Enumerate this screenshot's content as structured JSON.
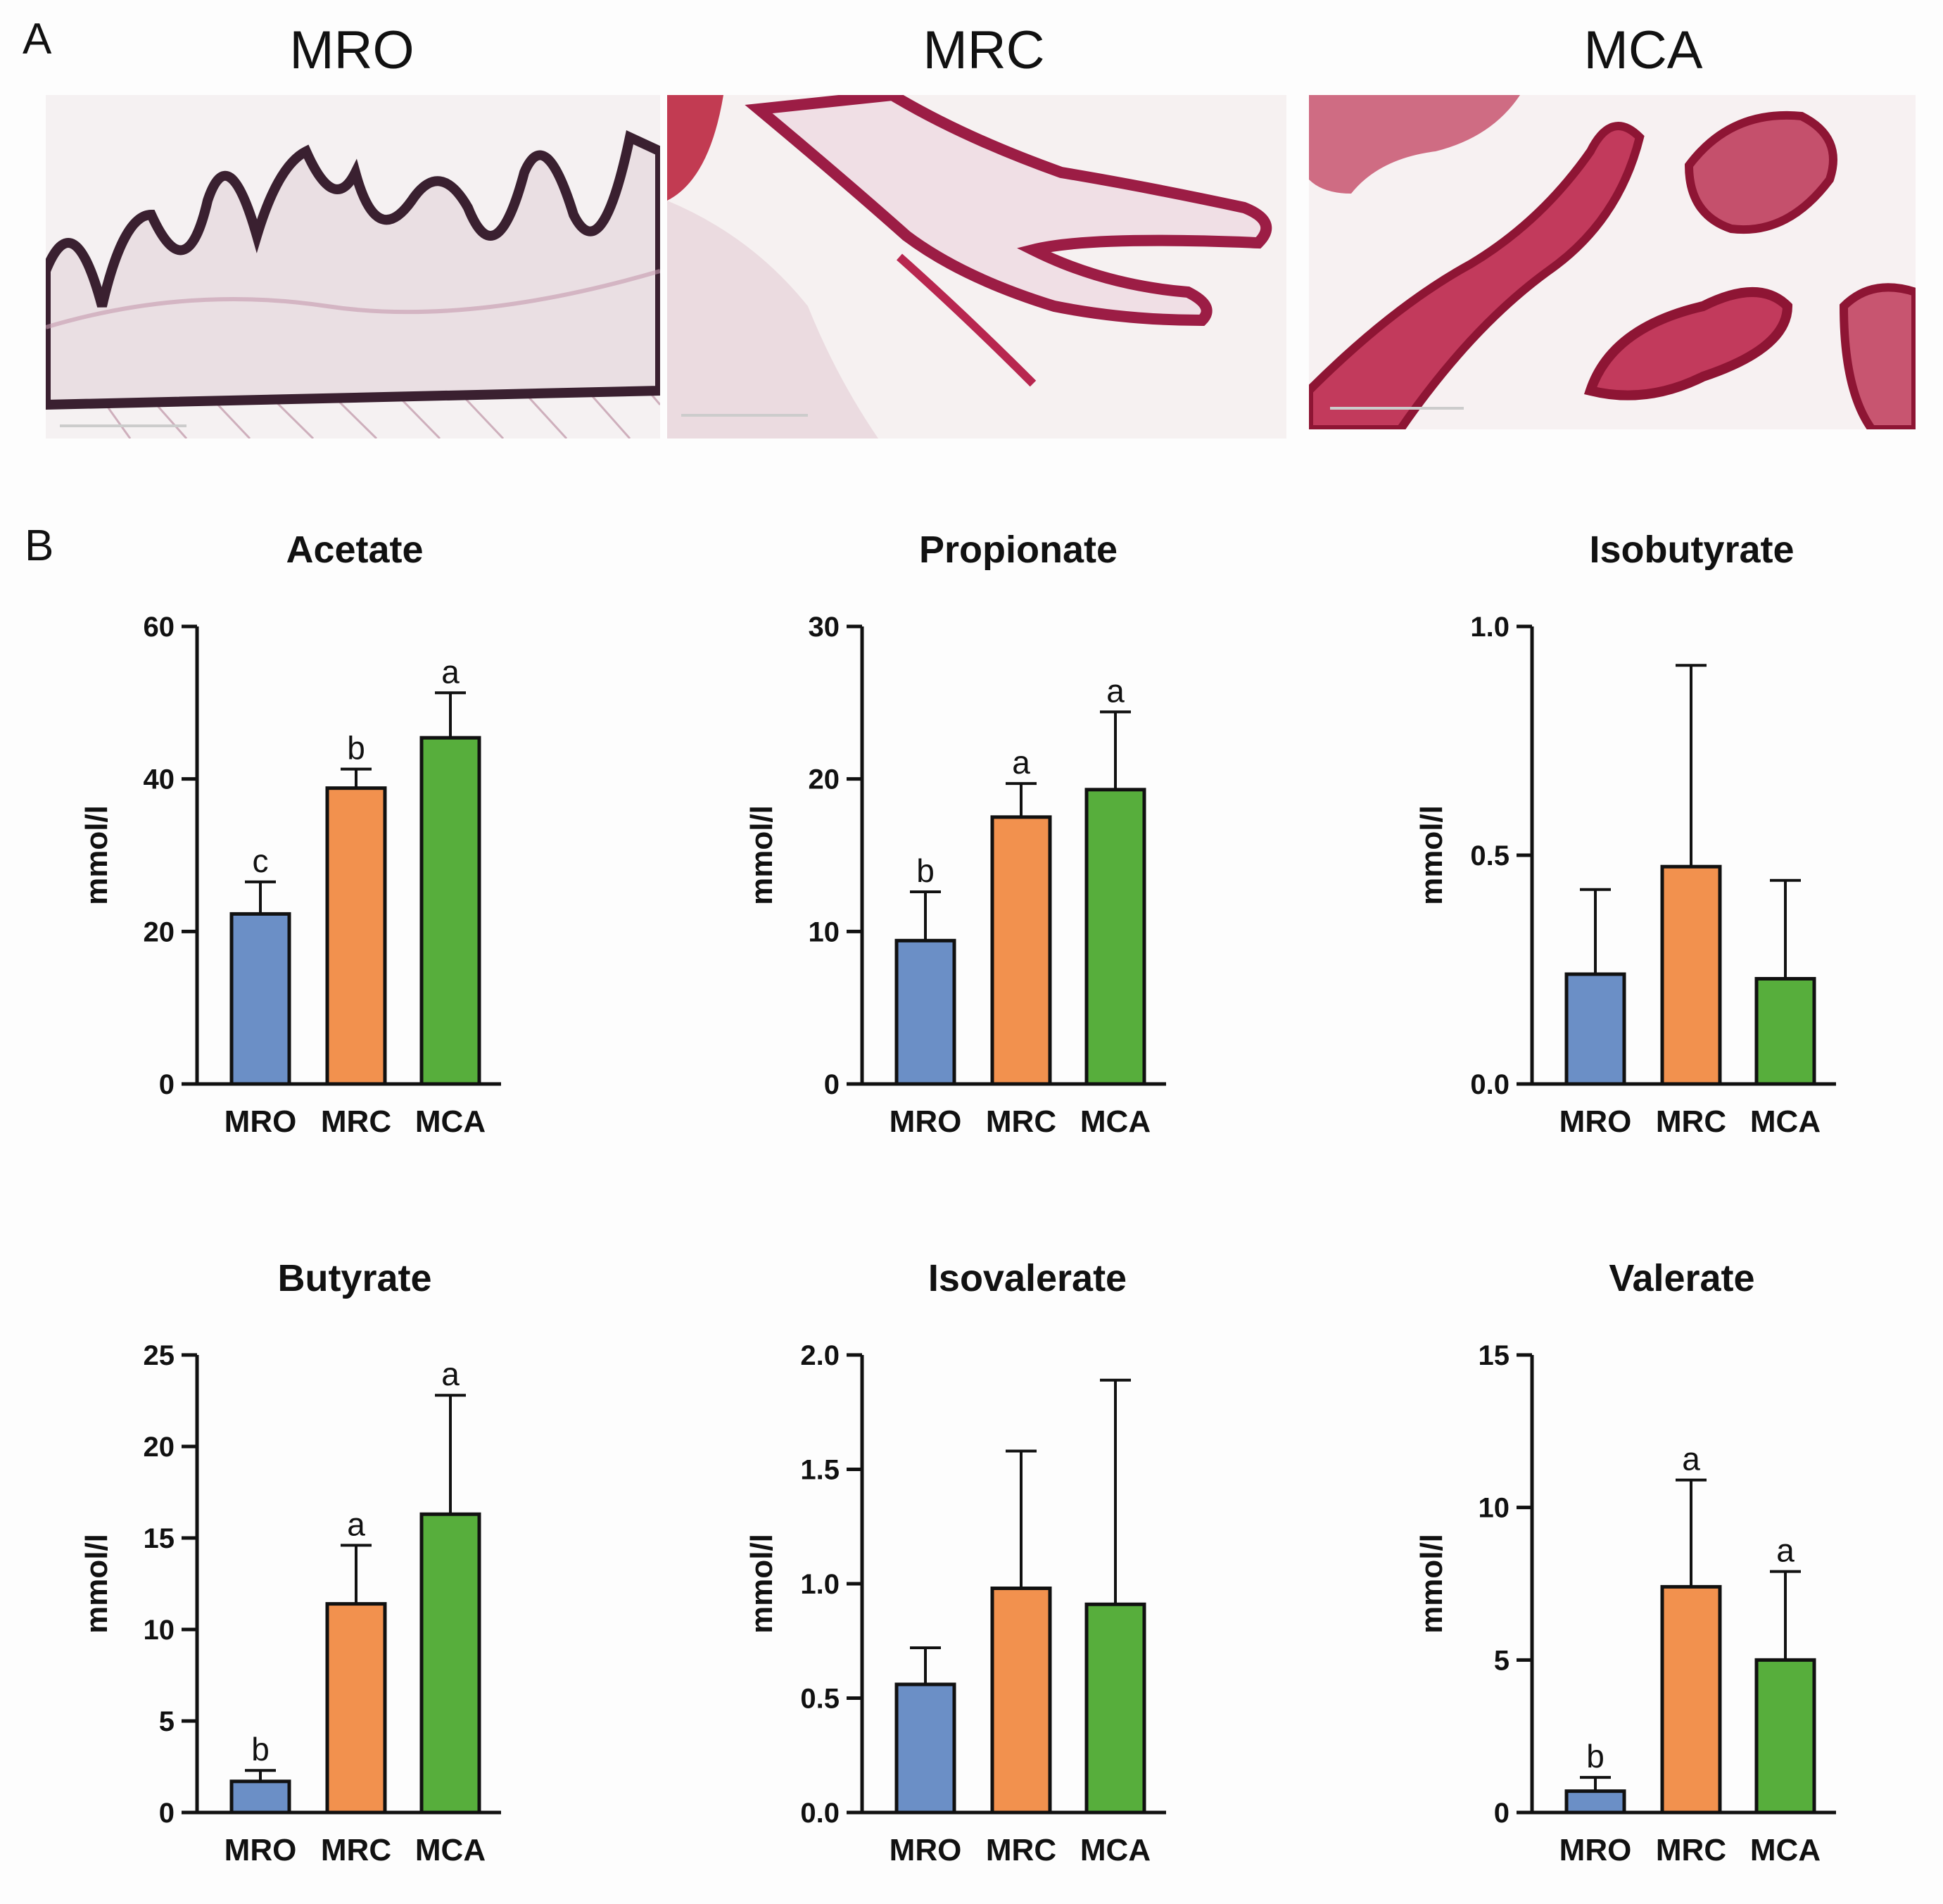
{
  "panel_a": {
    "letter": "A",
    "images": [
      {
        "title": "MRO",
        "tissue": "histology-folds",
        "stain": "dark-violet"
      },
      {
        "title": "MRC",
        "tissue": "histology-long-folds",
        "stain": "magenta"
      },
      {
        "title": "MCA",
        "tissue": "histology-loops",
        "stain": "crimson"
      }
    ]
  },
  "panel_b": {
    "letter": "B"
  },
  "colors": {
    "MRO": "#6b8fc6",
    "MRC": "#f2914e",
    "MCA": "#57ae3c",
    "axis": "#111111"
  },
  "chart_data": [
    {
      "type": "bar",
      "title": "Acetate",
      "ylabel": "mmol/l",
      "categories": [
        "MRO",
        "MRC",
        "MCA"
      ],
      "values": [
        22.3,
        38.8,
        45.4
      ],
      "errors": [
        4.2,
        2.5,
        5.9
      ],
      "significance": [
        "c",
        "b",
        "a"
      ],
      "ylim": [
        0,
        60
      ],
      "yticks": [
        0,
        20,
        40,
        60
      ],
      "ytick_labels": [
        "0",
        "20",
        "40",
        "60"
      ]
    },
    {
      "type": "bar",
      "title": "Propionate",
      "ylabel": "mmol/l",
      "categories": [
        "MRO",
        "MRC",
        "MCA"
      ],
      "values": [
        9.4,
        17.5,
        19.3
      ],
      "errors": [
        3.2,
        2.2,
        5.1
      ],
      "significance": [
        "b",
        "a",
        "a"
      ],
      "ylim": [
        0,
        30
      ],
      "yticks": [
        0,
        10,
        20,
        30
      ],
      "ytick_labels": [
        "0",
        "10",
        "20",
        "30"
      ]
    },
    {
      "type": "bar",
      "title": "Isobutyrate",
      "ylabel": "mmol/l",
      "categories": [
        "MRO",
        "MRC",
        "MCA"
      ],
      "values": [
        0.24,
        0.475,
        0.23
      ],
      "errors": [
        0.185,
        0.44,
        0.215
      ],
      "significance": [
        "",
        "",
        ""
      ],
      "ylim": [
        0,
        1.0
      ],
      "yticks": [
        0,
        0.5,
        1.0
      ],
      "ytick_labels": [
        "0.0",
        "0.5",
        "1.0"
      ]
    },
    {
      "type": "bar",
      "title": "Butyrate",
      "ylabel": "mmol/l",
      "categories": [
        "MRO",
        "MRC",
        "MCA"
      ],
      "values": [
        1.7,
        11.4,
        16.3
      ],
      "errors": [
        0.6,
        3.2,
        6.5
      ],
      "significance": [
        "b",
        "a",
        "a"
      ],
      "ylim": [
        0,
        25
      ],
      "yticks": [
        0,
        5,
        10,
        15,
        20,
        25
      ],
      "ytick_labels": [
        "0",
        "5",
        "10",
        "15",
        "20",
        "25"
      ]
    },
    {
      "type": "bar",
      "title": "Isovalerate",
      "ylabel": "mmol/l",
      "categories": [
        "MRO",
        "MRC",
        "MCA"
      ],
      "values": [
        0.56,
        0.98,
        0.91
      ],
      "errors": [
        0.16,
        0.6,
        0.98
      ],
      "significance": [
        "",
        "",
        ""
      ],
      "ylim": [
        0,
        2.0
      ],
      "yticks": [
        0,
        0.5,
        1.0,
        1.5,
        2.0
      ],
      "ytick_labels": [
        "0.0",
        "0.5",
        "1.0",
        "1.5",
        "2.0"
      ]
    },
    {
      "type": "bar",
      "title": "Valerate",
      "ylabel": "mmol/l",
      "categories": [
        "MRO",
        "MRC",
        "MCA"
      ],
      "values": [
        0.7,
        7.4,
        5.0
      ],
      "errors": [
        0.45,
        3.5,
        2.9
      ],
      "significance": [
        "b",
        "a",
        "a"
      ],
      "ylim": [
        0,
        15
      ],
      "yticks": [
        0,
        5,
        10,
        15
      ],
      "ytick_labels": [
        "0",
        "5",
        "10",
        "15"
      ]
    }
  ]
}
